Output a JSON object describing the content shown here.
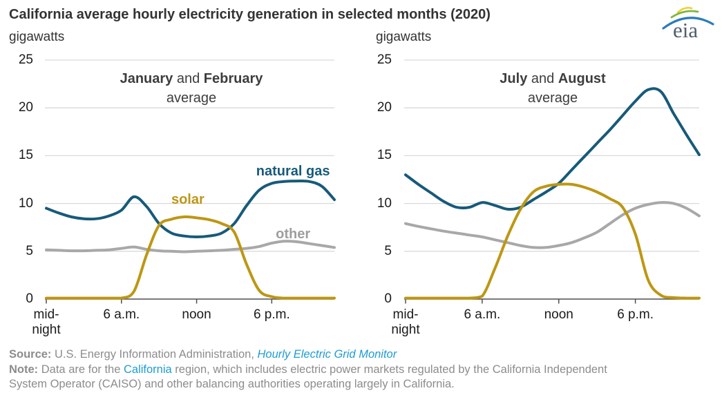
{
  "title": "California average hourly electricity generation in selected months (2020)",
  "logo": {
    "text": "eia"
  },
  "footer": {
    "source_label": "Source:",
    "source_text": " U.S. Energy Information Administration, ",
    "source_link": "Hourly Electric Grid Monitor",
    "note_label": "Note:",
    "note_pre": " Data are for the ",
    "note_link": "California",
    "note_line2_rest": " region, which includes electric power markets regulated by the California Independent",
    "note_line3": "System Operator (CAISO) and other balancing authorities operating largely in California."
  },
  "chart_data": [
    {
      "type": "line",
      "subtitle": {
        "month1": "January",
        "connector": " and ",
        "month2": "February",
        "line2": "average"
      },
      "ylabel": "gigawatts",
      "ylim": [
        0,
        25
      ],
      "yticks": [
        0,
        5,
        10,
        15,
        20,
        25
      ],
      "grid": true,
      "x_unit": "hour of day",
      "x_range_hours": [
        0,
        23
      ],
      "xticks": [
        {
          "hour": 0,
          "label": "mid-\nnight"
        },
        {
          "hour": 6,
          "label": "6 a.m."
        },
        {
          "hour": 12,
          "label": "noon"
        },
        {
          "hour": 18,
          "label": "6 p.m."
        }
      ],
      "series": [
        {
          "name": "other",
          "color": "#A8A8A8",
          "values": [
            5.15,
            5.1,
            5.05,
            5.05,
            5.1,
            5.15,
            5.3,
            5.45,
            5.2,
            5.05,
            5.0,
            4.95,
            5.0,
            5.05,
            5.1,
            5.2,
            5.3,
            5.5,
            5.85,
            6.05,
            6.0,
            5.8,
            5.6,
            5.4
          ]
        },
        {
          "name": "natural gas",
          "color": "#175A7A",
          "values": [
            9.5,
            9.0,
            8.6,
            8.4,
            8.4,
            8.7,
            9.3,
            10.7,
            9.7,
            7.9,
            6.9,
            6.6,
            6.5,
            6.6,
            6.9,
            7.9,
            9.8,
            11.4,
            12.1,
            12.3,
            12.35,
            12.3,
            11.8,
            10.4
          ]
        },
        {
          "name": "solar",
          "color": "#BD9714",
          "values": [
            0.07,
            0.07,
            0.07,
            0.07,
            0.07,
            0.07,
            0.1,
            0.8,
            4.6,
            7.7,
            8.35,
            8.6,
            8.5,
            8.3,
            7.9,
            7.0,
            3.6,
            0.9,
            0.25,
            0.1,
            0.07,
            0.07,
            0.07,
            0.07
          ]
        }
      ],
      "labels": [
        {
          "text": "natural gas",
          "x_hour": 19.7,
          "y_gw": 13.4,
          "color": "#175A7A"
        },
        {
          "text": "solar",
          "x_hour": 11.3,
          "y_gw": 10.4,
          "color": "#BD9714"
        },
        {
          "text": "other",
          "x_hour": 19.7,
          "y_gw": 6.8,
          "color": "#9E9E9E"
        }
      ]
    },
    {
      "type": "line",
      "subtitle": {
        "month1": "July",
        "connector": " and ",
        "month2": "August",
        "line2": "average"
      },
      "ylabel": "gigawatts",
      "ylim": [
        0,
        25
      ],
      "yticks": [
        0,
        5,
        10,
        15,
        20,
        25
      ],
      "grid": true,
      "x_unit": "hour of day",
      "x_range_hours": [
        0,
        23
      ],
      "xticks": [
        {
          "hour": 0,
          "label": "mid-\nnight"
        },
        {
          "hour": 6,
          "label": "6 a.m."
        },
        {
          "hour": 12,
          "label": "noon"
        },
        {
          "hour": 18,
          "label": "6 p.m."
        }
      ],
      "series": [
        {
          "name": "other",
          "color": "#A8A8A8",
          "values": [
            7.9,
            7.6,
            7.35,
            7.1,
            6.9,
            6.7,
            6.5,
            6.2,
            5.9,
            5.6,
            5.4,
            5.4,
            5.6,
            5.9,
            6.4,
            7.0,
            7.9,
            8.8,
            9.5,
            9.9,
            10.1,
            10.0,
            9.5,
            8.7
          ]
        },
        {
          "name": "natural gas",
          "color": "#175A7A",
          "values": [
            13.0,
            12.0,
            11.1,
            10.2,
            9.6,
            9.6,
            10.1,
            9.8,
            9.4,
            9.6,
            10.4,
            11.2,
            12.1,
            13.5,
            14.9,
            16.3,
            17.7,
            19.2,
            20.7,
            21.9,
            21.7,
            19.4,
            17.2,
            15.1
          ]
        },
        {
          "name": "solar",
          "color": "#BD9714",
          "values": [
            0.07,
            0.07,
            0.07,
            0.07,
            0.07,
            0.07,
            0.3,
            3.2,
            6.6,
            9.4,
            11.2,
            11.8,
            12.0,
            12.0,
            11.7,
            11.2,
            10.5,
            9.6,
            6.8,
            2.0,
            0.4,
            0.15,
            0.1,
            0.07
          ]
        }
      ],
      "labels": []
    }
  ]
}
